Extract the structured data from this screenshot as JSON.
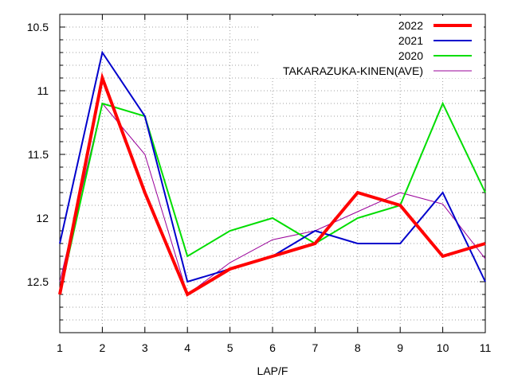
{
  "chart_data": {
    "type": "line",
    "xlabel": "LAP/F",
    "ylabel": "",
    "x": [
      1,
      2,
      3,
      4,
      5,
      6,
      7,
      8,
      9,
      10,
      11
    ],
    "xlim": [
      1,
      11
    ],
    "ylim": [
      12.9,
      10.4
    ],
    "y_reversed": true,
    "y_ticks": [
      10.5,
      11,
      11.5,
      12,
      12.5
    ],
    "y_tick_labels": [
      "10.5",
      "11",
      "11.5",
      "12",
      "12.5"
    ],
    "x_tick_labels": [
      "1",
      "2",
      "3",
      "4",
      "5",
      "6",
      "7",
      "8",
      "9",
      "10",
      "11"
    ],
    "grid": true,
    "legend_position": "top-right",
    "series": [
      {
        "name": "2022",
        "color": "#ff0000",
        "weight": "thick",
        "values": [
          12.6,
          10.9,
          11.8,
          12.6,
          12.4,
          12.3,
          12.2,
          11.8,
          11.9,
          12.3,
          12.2
        ]
      },
      {
        "name": "2021",
        "color": "#0000cc",
        "weight": "normal",
        "values": [
          12.2,
          10.7,
          11.2,
          12.5,
          12.4,
          12.3,
          12.1,
          12.2,
          12.2,
          11.8,
          12.5
        ]
      },
      {
        "name": "2020",
        "color": "#00dd00",
        "weight": "normal",
        "values": [
          12.6,
          11.1,
          11.2,
          12.3,
          12.1,
          12.0,
          12.2,
          12.0,
          11.9,
          11.1,
          11.8
        ]
      },
      {
        "name": "TAKARAZUKA-KINEN(AVE)",
        "color": "#990099",
        "weight": "thin",
        "values": [
          12.5,
          11.1,
          11.5,
          12.6,
          12.35,
          12.17,
          12.1,
          11.95,
          11.8,
          11.89,
          12.32
        ]
      }
    ]
  }
}
